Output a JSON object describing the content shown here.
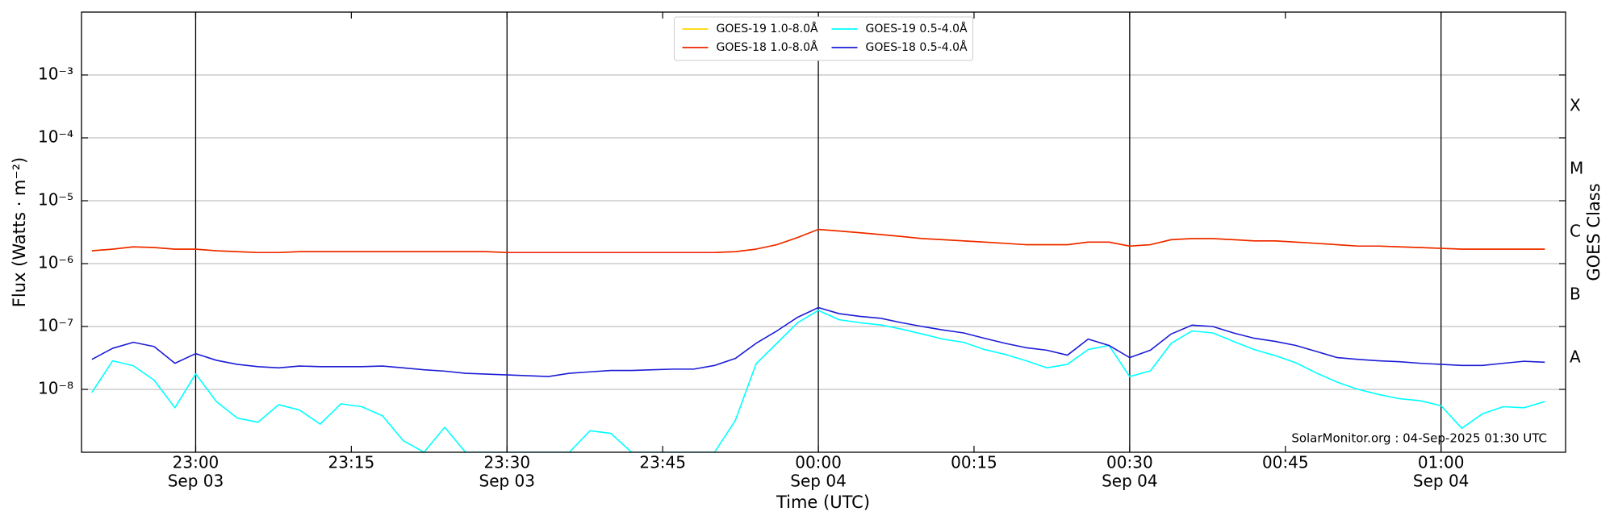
{
  "chart_data": {
    "type": "line",
    "x_label": "Time (UTC)",
    "y_label": "Flux (Watts · m⁻²)",
    "y2_label": "GOES Class",
    "footer": "SolarMonitor.org : 04-Sep-2025 01:30 UTC",
    "log_y": true,
    "grid": true,
    "legend": "upper center",
    "xlim": [
      "Sep 03 22:49",
      "Sep 04 01:12"
    ],
    "ylim": [
      1e-09,
      0.01
    ],
    "xticks": [
      {
        "value": "Sep 03 23:00",
        "label": "23:00",
        "date": "Sep 03"
      },
      {
        "value": "Sep 03 23:15",
        "label": "23:15"
      },
      {
        "value": "Sep 03 23:30",
        "label": "23:30",
        "date": "Sep 03"
      },
      {
        "value": "Sep 03 23:45",
        "label": "23:45"
      },
      {
        "value": "Sep 04 00:00",
        "label": "00:00",
        "date": "Sep 04"
      },
      {
        "value": "Sep 04 00:15",
        "label": "00:15"
      },
      {
        "value": "Sep 04 00:30",
        "label": "00:30",
        "date": "Sep 04"
      },
      {
        "value": "Sep 04 00:45",
        "label": "00:45"
      },
      {
        "value": "Sep 04 01:00",
        "label": "01:00",
        "date": "Sep 04"
      }
    ],
    "yticks": [
      {
        "value": 1e-08,
        "label": "10⁻⁸"
      },
      {
        "value": 1e-07,
        "label": "10⁻⁷"
      },
      {
        "value": 1e-06,
        "label": "10⁻⁶"
      },
      {
        "value": 1e-05,
        "label": "10⁻⁵"
      },
      {
        "value": 0.0001,
        "label": "10⁻⁴"
      },
      {
        "value": 0.001,
        "label": "10⁻³"
      }
    ],
    "class_ticks": [
      {
        "value": 3.16e-08,
        "label": "A"
      },
      {
        "value": 3.16e-07,
        "label": "B"
      },
      {
        "value": 3.16e-06,
        "label": "C"
      },
      {
        "value": 3.16e-05,
        "label": "M"
      },
      {
        "value": 0.000316,
        "label": "X"
      }
    ],
    "x": [
      "Sep 03 22:50",
      "Sep 03 22:52",
      "Sep 03 22:54",
      "Sep 03 22:56",
      "Sep 03 22:58",
      "Sep 03 23:00",
      "Sep 03 23:02",
      "Sep 03 23:04",
      "Sep 03 23:06",
      "Sep 03 23:08",
      "Sep 03 23:10",
      "Sep 03 23:12",
      "Sep 03 23:14",
      "Sep 03 23:16",
      "Sep 03 23:18",
      "Sep 03 23:20",
      "Sep 03 23:22",
      "Sep 03 23:24",
      "Sep 03 23:26",
      "Sep 03 23:28",
      "Sep 03 23:30",
      "Sep 03 23:32",
      "Sep 03 23:34",
      "Sep 03 23:36",
      "Sep 03 23:38",
      "Sep 03 23:40",
      "Sep 03 23:42",
      "Sep 03 23:44",
      "Sep 03 23:46",
      "Sep 03 23:48",
      "Sep 03 23:50",
      "Sep 03 23:52",
      "Sep 03 23:54",
      "Sep 03 23:56",
      "Sep 03 23:58",
      "Sep 04 00:00",
      "Sep 04 00:02",
      "Sep 04 00:04",
      "Sep 04 00:06",
      "Sep 04 00:08",
      "Sep 04 00:10",
      "Sep 04 00:12",
      "Sep 04 00:14",
      "Sep 04 00:16",
      "Sep 04 00:18",
      "Sep 04 00:20",
      "Sep 04 00:22",
      "Sep 04 00:24",
      "Sep 04 00:26",
      "Sep 04 00:28",
      "Sep 04 00:30",
      "Sep 04 00:32",
      "Sep 04 00:34",
      "Sep 04 00:36",
      "Sep 04 00:38",
      "Sep 04 00:40",
      "Sep 04 00:42",
      "Sep 04 00:44",
      "Sep 04 00:46",
      "Sep 04 00:48",
      "Sep 04 00:50",
      "Sep 04 00:52",
      "Sep 04 00:54",
      "Sep 04 00:56",
      "Sep 04 00:58",
      "Sep 04 01:00",
      "Sep 04 01:02",
      "Sep 04 01:04",
      "Sep 04 01:06",
      "Sep 04 01:08",
      "Sep 04 01:10"
    ],
    "series": [
      {
        "name": "GOES-19 1.0-8.0Å",
        "color": "#ffd700",
        "values": [
          1.6e-06,
          1.7e-06,
          1.85e-06,
          1.8e-06,
          1.7e-06,
          1.7e-06,
          1.6e-06,
          1.55e-06,
          1.5e-06,
          1.5e-06,
          1.55e-06,
          1.55e-06,
          1.55e-06,
          1.55e-06,
          1.55e-06,
          1.55e-06,
          1.55e-06,
          1.55e-06,
          1.55e-06,
          1.55e-06,
          1.5e-06,
          1.5e-06,
          1.5e-06,
          1.5e-06,
          1.5e-06,
          1.5e-06,
          1.5e-06,
          1.5e-06,
          1.5e-06,
          1.5e-06,
          1.5e-06,
          1.55e-06,
          1.7e-06,
          2e-06,
          2.6e-06,
          3.5e-06,
          3.3e-06,
          3.1e-06,
          2.9e-06,
          2.7e-06,
          2.5e-06,
          2.4e-06,
          2.3e-06,
          2.2e-06,
          2.1e-06,
          2e-06,
          2e-06,
          2e-06,
          2.2e-06,
          2.2e-06,
          1.9e-06,
          2e-06,
          2.4e-06,
          2.5e-06,
          2.5e-06,
          2.4e-06,
          2.3e-06,
          2.3e-06,
          2.2e-06,
          2.1e-06,
          2e-06,
          1.9e-06,
          1.9e-06,
          1.85e-06,
          1.8e-06,
          1.75e-06,
          1.7e-06,
          1.7e-06,
          1.7e-06,
          1.7e-06,
          1.7e-06
        ]
      },
      {
        "name": "GOES-18 1.0-8.0Å",
        "color": "#ee2200",
        "values": [
          1.6e-06,
          1.7e-06,
          1.85e-06,
          1.8e-06,
          1.7e-06,
          1.7e-06,
          1.6e-06,
          1.55e-06,
          1.5e-06,
          1.5e-06,
          1.55e-06,
          1.55e-06,
          1.55e-06,
          1.55e-06,
          1.55e-06,
          1.55e-06,
          1.55e-06,
          1.55e-06,
          1.55e-06,
          1.55e-06,
          1.5e-06,
          1.5e-06,
          1.5e-06,
          1.5e-06,
          1.5e-06,
          1.5e-06,
          1.5e-06,
          1.5e-06,
          1.5e-06,
          1.5e-06,
          1.5e-06,
          1.55e-06,
          1.7e-06,
          2e-06,
          2.6e-06,
          3.5e-06,
          3.3e-06,
          3.1e-06,
          2.9e-06,
          2.7e-06,
          2.5e-06,
          2.4e-06,
          2.3e-06,
          2.2e-06,
          2.1e-06,
          2e-06,
          2e-06,
          2e-06,
          2.2e-06,
          2.2e-06,
          1.9e-06,
          2e-06,
          2.4e-06,
          2.5e-06,
          2.5e-06,
          2.4e-06,
          2.3e-06,
          2.3e-06,
          2.2e-06,
          2.1e-06,
          2e-06,
          1.9e-06,
          1.9e-06,
          1.85e-06,
          1.8e-06,
          1.75e-06,
          1.7e-06,
          1.7e-06,
          1.7e-06,
          1.7e-06,
          1.7e-06
        ]
      },
      {
        "name": "GOES-19 0.5-4.0Å",
        "color": "#00ffff",
        "values": [
          8.9e-09,
          2.85e-08,
          2.37e-08,
          1.4e-08,
          5.1e-09,
          1.76e-08,
          6.4e-09,
          3.5e-09,
          3e-09,
          5.7e-09,
          4.7e-09,
          2.8e-09,
          5.9e-09,
          5.3e-09,
          3.8e-09,
          1.53e-09,
          1e-09,
          2.5e-09,
          1e-09,
          1e-09,
          1e-09,
          1e-09,
          1e-09,
          1e-09,
          2.2e-09,
          2e-09,
          1e-09,
          1e-09,
          1e-09,
          1e-09,
          1e-09,
          3.2e-09,
          2.55e-08,
          5.4e-08,
          1.15e-07,
          1.8e-07,
          1.28e-07,
          1.15e-07,
          1.06e-07,
          9.1e-08,
          7.6e-08,
          6.3e-08,
          5.6e-08,
          4.3e-08,
          3.6e-08,
          2.86e-08,
          2.2e-08,
          2.5e-08,
          4.3e-08,
          5e-08,
          1.6e-08,
          1.97e-08,
          5.4e-08,
          8.5e-08,
          7.9e-08,
          5.8e-08,
          4.3e-08,
          3.45e-08,
          2.65e-08,
          1.82e-08,
          1.3e-08,
          1e-08,
          8.3e-09,
          7.1e-09,
          6.6e-09,
          5.5e-09,
          2.4e-09,
          4.1e-09,
          5.3e-09,
          5.1e-09,
          6.4e-09
        ]
      },
      {
        "name": "GOES-18 0.5-4.0Å",
        "color": "#1c1cd6",
        "values": [
          3e-08,
          4.5e-08,
          5.6e-08,
          4.8e-08,
          2.6e-08,
          3.7e-08,
          2.9e-08,
          2.5e-08,
          2.3e-08,
          2.2e-08,
          2.35e-08,
          2.3e-08,
          2.3e-08,
          2.3e-08,
          2.35e-08,
          2.2e-08,
          2.05e-08,
          1.95e-08,
          1.8e-08,
          1.75e-08,
          1.7e-08,
          1.65e-08,
          1.6e-08,
          1.8e-08,
          1.9e-08,
          2e-08,
          2e-08,
          2.05e-08,
          2.1e-08,
          2.1e-08,
          2.4e-08,
          3.1e-08,
          5.4e-08,
          8.5e-08,
          1.4e-07,
          2e-07,
          1.6e-07,
          1.45e-07,
          1.35e-07,
          1.15e-07,
          1e-07,
          8.8e-08,
          7.9e-08,
          6.5e-08,
          5.4e-08,
          4.6e-08,
          4.2e-08,
          3.5e-08,
          6.3e-08,
          5e-08,
          3.2e-08,
          4.2e-08,
          7.6e-08,
          1.05e-07,
          1e-07,
          7.9e-08,
          6.5e-08,
          5.8e-08,
          5e-08,
          4e-08,
          3.2e-08,
          3e-08,
          2.85e-08,
          2.75e-08,
          2.6e-08,
          2.5e-08,
          2.4e-08,
          2.4e-08,
          2.6e-08,
          2.8e-08,
          2.7e-08
        ]
      }
    ]
  }
}
